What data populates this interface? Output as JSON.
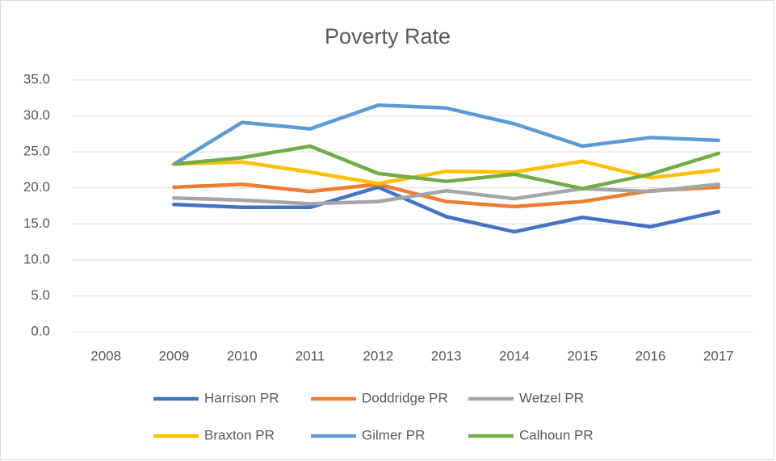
{
  "chart_data": {
    "type": "line",
    "title": "Poverty Rate",
    "categories": [
      "2008",
      "2009",
      "2010",
      "2011",
      "2012",
      "2013",
      "2014",
      "2015",
      "2016",
      "2017"
    ],
    "series": [
      {
        "name": "Harrison PR",
        "color": "#4472c4",
        "values": [
          null,
          17.7,
          17.3,
          17.3,
          20.1,
          16.0,
          13.9,
          15.9,
          14.6,
          16.7
        ]
      },
      {
        "name": "Doddridge PR",
        "color": "#ed7d31",
        "values": [
          null,
          20.1,
          20.5,
          19.5,
          20.5,
          18.1,
          17.4,
          18.1,
          19.6,
          20.1
        ]
      },
      {
        "name": "Wetzel PR",
        "color": "#a5a5a5",
        "values": [
          null,
          18.6,
          18.3,
          17.8,
          18.1,
          19.6,
          18.5,
          19.9,
          19.5,
          20.5
        ]
      },
      {
        "name": "Braxton PR",
        "color": "#ffc000",
        "values": [
          null,
          23.3,
          23.6,
          22.2,
          20.6,
          22.3,
          22.2,
          23.7,
          21.4,
          22.5
        ]
      },
      {
        "name": "Gilmer PR",
        "color": "#5b9bd5",
        "values": [
          null,
          23.3,
          29.1,
          28.2,
          31.5,
          31.1,
          28.9,
          25.8,
          27.0,
          26.6
        ]
      },
      {
        "name": "Calhoun PR",
        "color": "#70ad47",
        "values": [
          null,
          23.3,
          24.2,
          25.8,
          22.0,
          20.9,
          21.9,
          19.9,
          21.9,
          24.8
        ]
      }
    ],
    "ylim": [
      0,
      35
    ],
    "yticks": [
      {
        "value": 0,
        "label": "0.0"
      },
      {
        "value": 5,
        "label": "5.0"
      },
      {
        "value": 10,
        "label": "10.0"
      },
      {
        "value": 15,
        "label": "15.0"
      },
      {
        "value": 20,
        "label": "20.0"
      },
      {
        "value": 25,
        "label": "25.0"
      },
      {
        "value": 30,
        "label": "30.0"
      },
      {
        "value": 35,
        "label": "35.0"
      }
    ],
    "grid": true,
    "legend": "bottom"
  }
}
